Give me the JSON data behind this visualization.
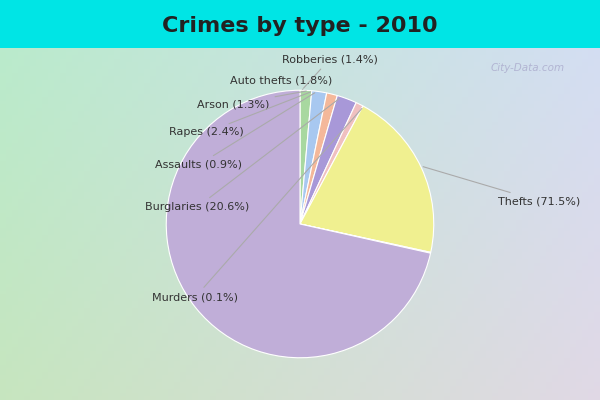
{
  "title": "Crimes by type - 2010",
  "plot_labels": [
    "Robberies",
    "Auto thefts",
    "Arson",
    "Rapes",
    "Assaults",
    "Burglaries",
    "Murders",
    "Thefts"
  ],
  "plot_sizes": [
    1.4,
    1.8,
    1.3,
    2.4,
    0.9,
    20.6,
    0.1,
    71.5
  ],
  "plot_colors": [
    "#a8d8a0",
    "#a8c8f0",
    "#f4b89a",
    "#a898d8",
    "#f0c0c0",
    "#f0f090",
    "#c8e8b8",
    "#c0aed8"
  ],
  "startangle": 90,
  "background_color_outer": "#00e5e5",
  "title_fontsize": 16,
  "label_fontsize": 8,
  "watermark": "City-Data.com"
}
